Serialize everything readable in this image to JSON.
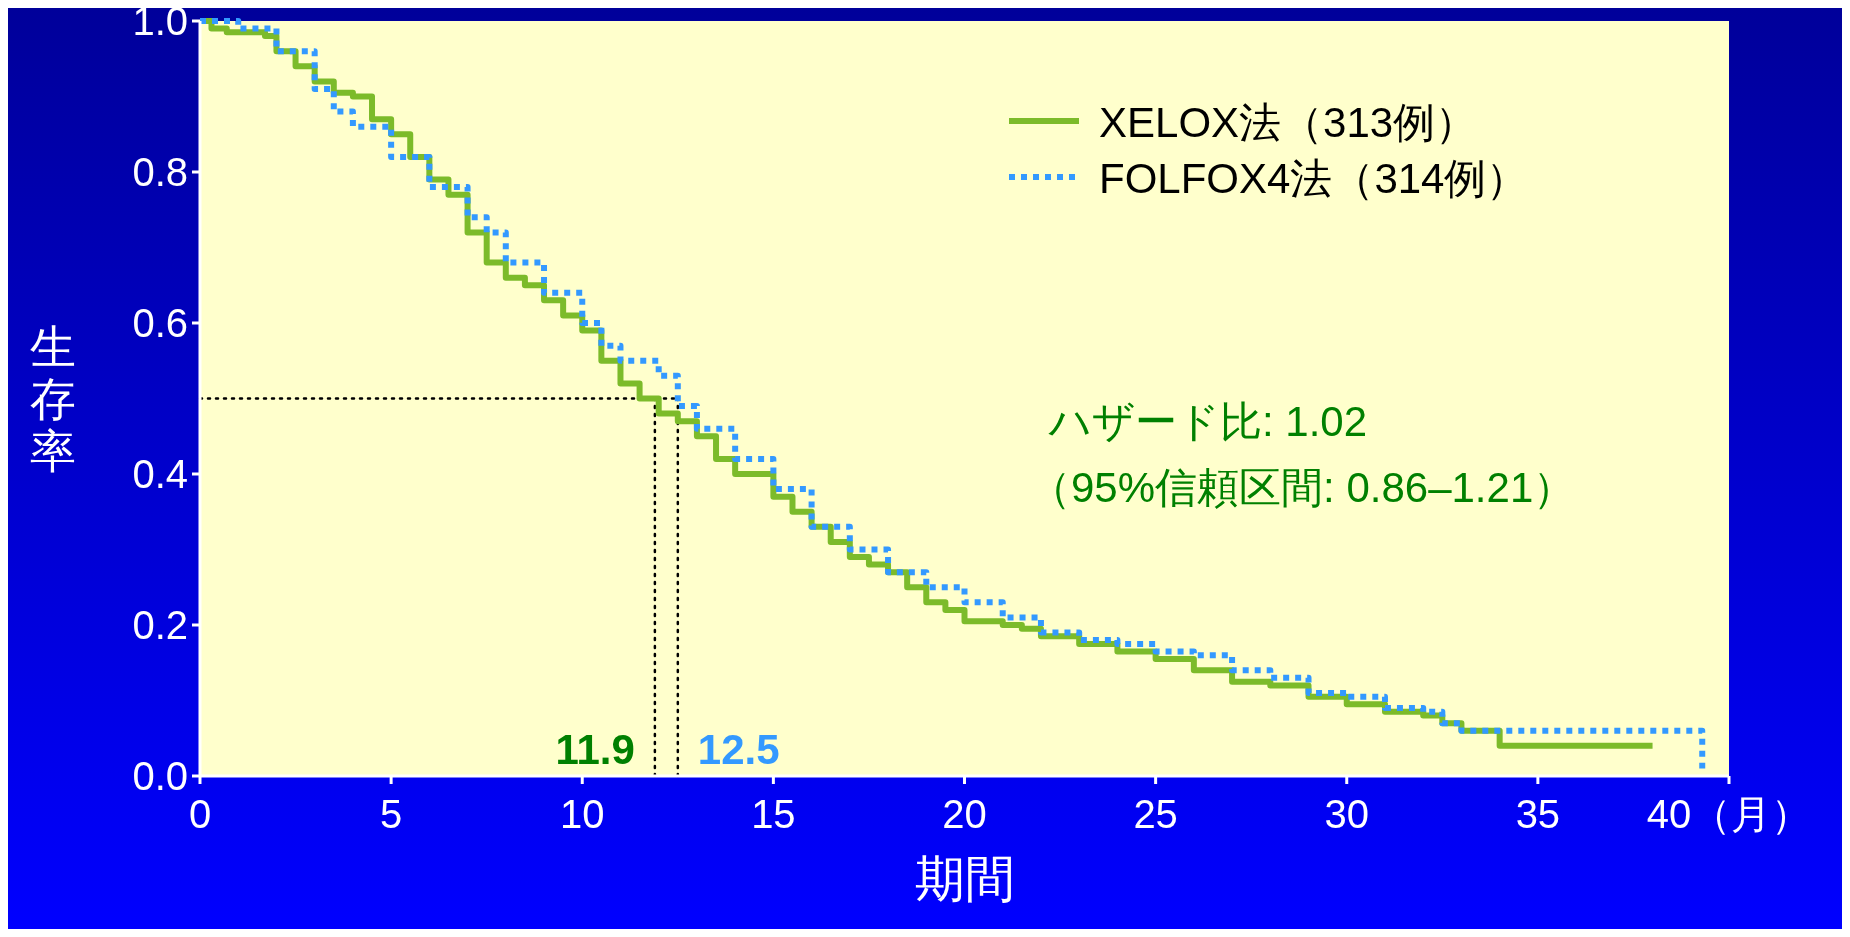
{
  "chart_data": {
    "type": "step",
    "xlabel": "期間",
    "ylabel": "生存率",
    "xlim": [
      0,
      40
    ],
    "ylim": [
      0,
      1
    ],
    "xticks": [
      0,
      5,
      10,
      15,
      20,
      25,
      30,
      35,
      {
        "value": 40,
        "label": "40（月）"
      }
    ],
    "yticks": [
      {
        "value": 0,
        "label": "0.0"
      },
      0.2,
      0.4,
      0.6,
      0.8,
      {
        "value": 1,
        "label": "1.0"
      }
    ],
    "legend": "top right",
    "grid": false,
    "series": [
      {
        "name": "XELOX法（313例）",
        "color": "#7cbb2a",
        "line_style": "solid",
        "x": [
          0,
          0.3,
          0.7,
          1.7,
          2,
          2.5,
          3,
          3.5,
          4,
          4.5,
          5,
          5.5,
          6,
          6.5,
          7,
          7.5,
          8,
          8.5,
          9,
          9.5,
          10,
          10.5,
          11,
          11.5,
          12,
          12.5,
          13,
          13.5,
          14,
          14.5,
          15,
          15.5,
          16,
          16.5,
          17,
          17.5,
          18,
          18.5,
          19,
          19.5,
          20,
          21,
          21.5,
          22,
          23,
          24,
          25,
          26,
          27,
          28,
          29,
          30,
          31,
          32,
          32.5,
          33,
          34,
          38
        ],
        "values": [
          1,
          0.99,
          0.985,
          0.98,
          0.96,
          0.94,
          0.92,
          0.905,
          0.9,
          0.87,
          0.85,
          0.82,
          0.79,
          0.77,
          0.72,
          0.68,
          0.66,
          0.65,
          0.63,
          0.61,
          0.59,
          0.55,
          0.52,
          0.5,
          0.48,
          0.47,
          0.45,
          0.42,
          0.4,
          0.4,
          0.37,
          0.35,
          0.33,
          0.31,
          0.29,
          0.28,
          0.27,
          0.25,
          0.23,
          0.22,
          0.205,
          0.2,
          0.195,
          0.185,
          0.175,
          0.165,
          0.155,
          0.14,
          0.125,
          0.12,
          0.105,
          0.095,
          0.085,
          0.08,
          0.07,
          0.06,
          0.04,
          0.04
        ]
      },
      {
        "name": "FOLFOX4法（314例）",
        "color": "#3399ff",
        "line_style": "dotted",
        "x": [
          0,
          1,
          2,
          3,
          3.5,
          4,
          5,
          6,
          7,
          7.5,
          8,
          9,
          10,
          10.5,
          11,
          12,
          12.5,
          13,
          14,
          15,
          16,
          17,
          18,
          19,
          20,
          21,
          22,
          23,
          24,
          25,
          26,
          27,
          28,
          29,
          30,
          31,
          32,
          32.5,
          33,
          39.3,
          39.3
        ],
        "values": [
          1,
          0.99,
          0.96,
          0.91,
          0.88,
          0.86,
          0.82,
          0.78,
          0.74,
          0.72,
          0.68,
          0.64,
          0.6,
          0.57,
          0.55,
          0.53,
          0.49,
          0.46,
          0.42,
          0.38,
          0.33,
          0.3,
          0.27,
          0.25,
          0.23,
          0.21,
          0.19,
          0.18,
          0.175,
          0.165,
          0.16,
          0.14,
          0.13,
          0.11,
          0.105,
          0.09,
          0.085,
          0.07,
          0.06,
          0.06,
          0.01
        ]
      }
    ],
    "ref_lines": [
      {
        "axis": "y",
        "value": 0.5,
        "color": "#000000",
        "line_style": "dotted"
      },
      {
        "axis": "x",
        "value": 11.9,
        "color": "#000000",
        "line_style": "dotted"
      },
      {
        "axis": "x",
        "value": 12.5,
        "color": "#000000",
        "line_style": "dotted"
      }
    ],
    "annotations": [
      {
        "text": "11.9",
        "x": 11.9,
        "y": 0
      },
      {
        "text": "12.5",
        "x": 12.5,
        "y": 0
      },
      "ハザード比: 1.02",
      "（95%信頼区間: 0.86–1.21）"
    ]
  }
}
